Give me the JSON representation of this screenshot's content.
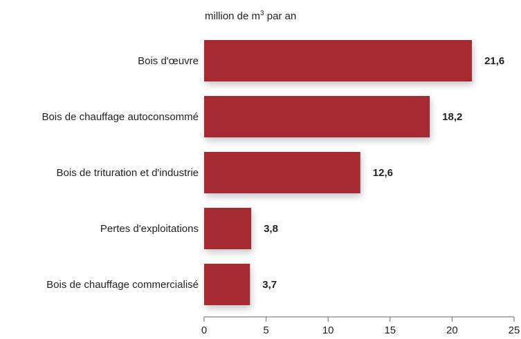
{
  "chart_data": {
    "type": "bar",
    "orientation": "horizontal",
    "unit_label": {
      "prefix": "million de m",
      "superscript": "3",
      "suffix": " par an"
    },
    "categories": [
      "Bois d'œuvre",
      "Bois de chauffage autoconsommé",
      "Bois de trituration et d'industrie",
      "Pertes d'exploitations",
      "Bois de chauffage commercialisé"
    ],
    "values": [
      21.6,
      18.2,
      12.6,
      3.8,
      3.7
    ],
    "value_labels": [
      "21,6",
      "18,2",
      "12,6",
      "3,8",
      "3,7"
    ],
    "xlim": [
      0,
      25
    ],
    "xticks": [
      0,
      5,
      10,
      15,
      20,
      25
    ],
    "xtick_labels": [
      "0",
      "5",
      "10",
      "15",
      "20",
      "25"
    ],
    "bar_color": "#a52a33",
    "grid": false,
    "legend": "none"
  }
}
